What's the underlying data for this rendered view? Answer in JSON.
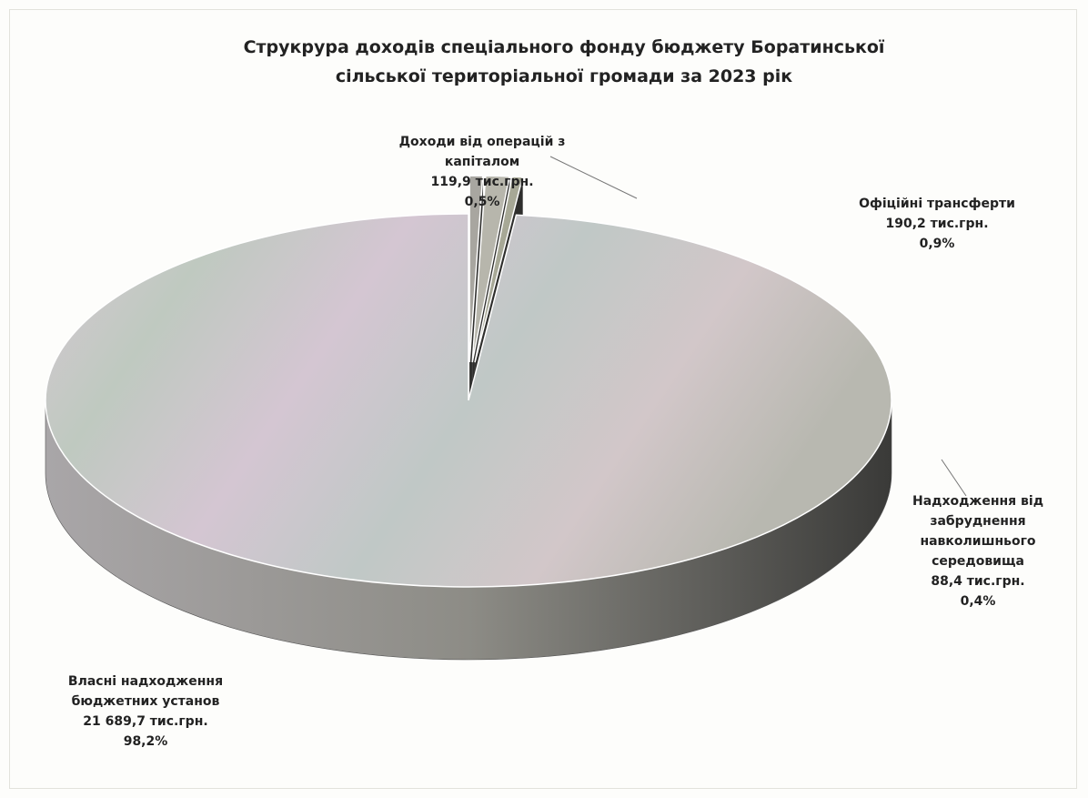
{
  "chart_data": {
    "type": "pie",
    "title": "Струкрура доходів спеціального фонду бюджету Боратинської сільської територіальної громади за 2023 рік",
    "categories": [
      "Доходи від операцій з капіталом",
      "Офіційні трансферти",
      "Надходження від забруднення навколишнього середовища",
      "Власні надходження бюджетних установ"
    ],
    "values": [
      0.5,
      0.9,
      0.4,
      98.2
    ],
    "value_labels": [
      "0,5%",
      "0,9%",
      "0,4%",
      "98,2%"
    ],
    "amount_labels": [
      "119,9 тис.грн.",
      "190,2 тис.грн.",
      "88,4 тис.грн.",
      "21 689,7 тис.грн."
    ],
    "colors": [
      "#a8a6a0",
      "#b7b6ac",
      "#a7a896",
      "#c4bcc4"
    ]
  }
}
